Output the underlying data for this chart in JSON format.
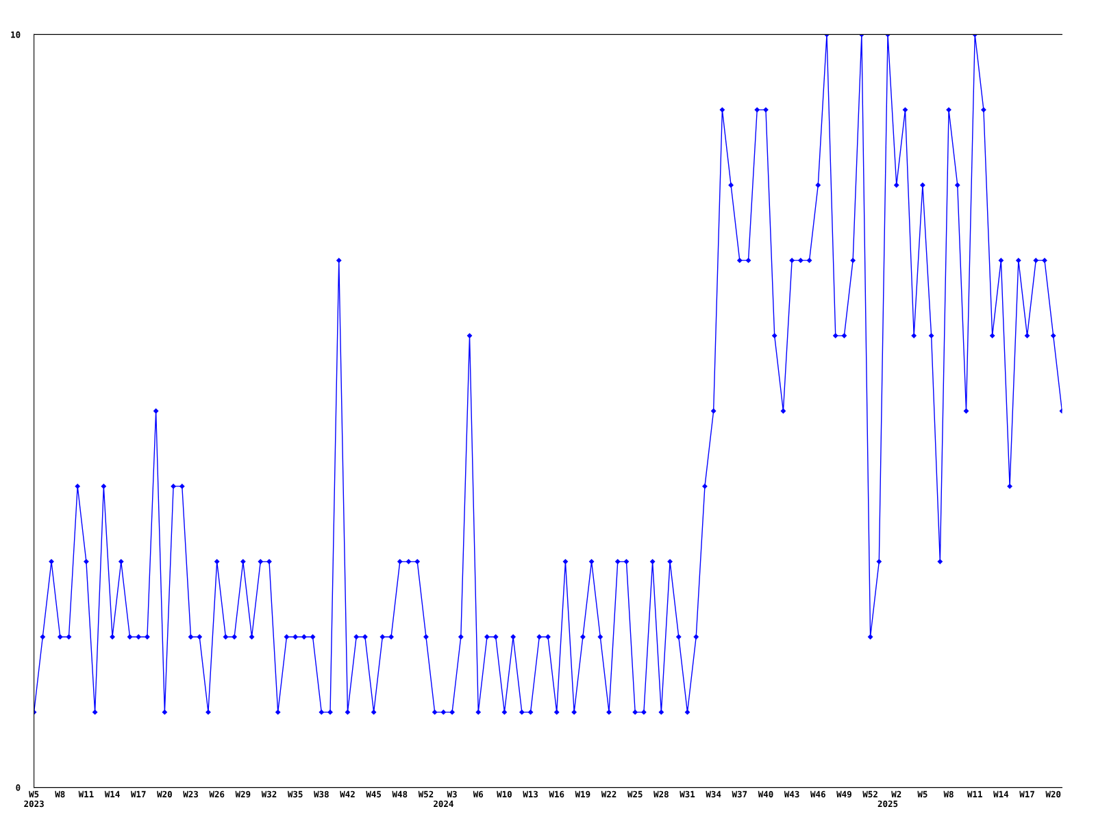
{
  "chart_data": {
    "type": "line",
    "categories": [
      "W5\n2023",
      null,
      null,
      "W8",
      null,
      null,
      "W11",
      null,
      null,
      "W14",
      null,
      null,
      "W17",
      null,
      null,
      "W20",
      null,
      null,
      "W23",
      null,
      null,
      "W26",
      null,
      null,
      "W29",
      null,
      null,
      "W32",
      null,
      null,
      "W35",
      null,
      null,
      "W38",
      null,
      null,
      "W42",
      null,
      null,
      "W45",
      null,
      null,
      "W48",
      null,
      null,
      "W52",
      null,
      "\n2024",
      "W3",
      null,
      null,
      "W6",
      null,
      null,
      "W10",
      null,
      null,
      "W13",
      null,
      null,
      "W16",
      null,
      null,
      "W19",
      null,
      null,
      "W22",
      null,
      null,
      "W25",
      null,
      null,
      "W28",
      null,
      null,
      "W31",
      null,
      null,
      "W34",
      null,
      null,
      "W37",
      null,
      null,
      "W40",
      null,
      null,
      "W43",
      null,
      null,
      "W46",
      null,
      null,
      "W49",
      null,
      null,
      "W52",
      null,
      "\n2025",
      "W2",
      null,
      null,
      "W5",
      null,
      null,
      "W8",
      null,
      null,
      "W11",
      null,
      null,
      "W14",
      null,
      null,
      "W17",
      null,
      null,
      "W20",
      null
    ],
    "series": [
      {
        "color": "#0000ff",
        "values": [
          1,
          2,
          3,
          2,
          2,
          4,
          3,
          1,
          4,
          2,
          3,
          2,
          2,
          2,
          5,
          1,
          4,
          4,
          2,
          2,
          1,
          3,
          2,
          2,
          3,
          2,
          3,
          3,
          1,
          2,
          2,
          2,
          2,
          1,
          1,
          7,
          1,
          2,
          2,
          1,
          2,
          2,
          3,
          3,
          3,
          2,
          1,
          1,
          1,
          2,
          6,
          1,
          2,
          2,
          1,
          2,
          1,
          1,
          2,
          2,
          1,
          3,
          1,
          2,
          3,
          2,
          1,
          3,
          3,
          1,
          1,
          3,
          1,
          3,
          2,
          1,
          2,
          4,
          5,
          9,
          8,
          7,
          7,
          9,
          9,
          6,
          5,
          7,
          7,
          7,
          8,
          10,
          6,
          6,
          7,
          10,
          2,
          3,
          10,
          8,
          9,
          6,
          8,
          6,
          3,
          9,
          8,
          5,
          10,
          9,
          6,
          7,
          4,
          7,
          6,
          7,
          7,
          6,
          5
        ]
      }
    ],
    "ylim": [
      0,
      10
    ],
    "yticks": [
      0,
      10
    ],
    "grid": false,
    "legend": false,
    "marker": "diamond",
    "line_style": "solid"
  }
}
